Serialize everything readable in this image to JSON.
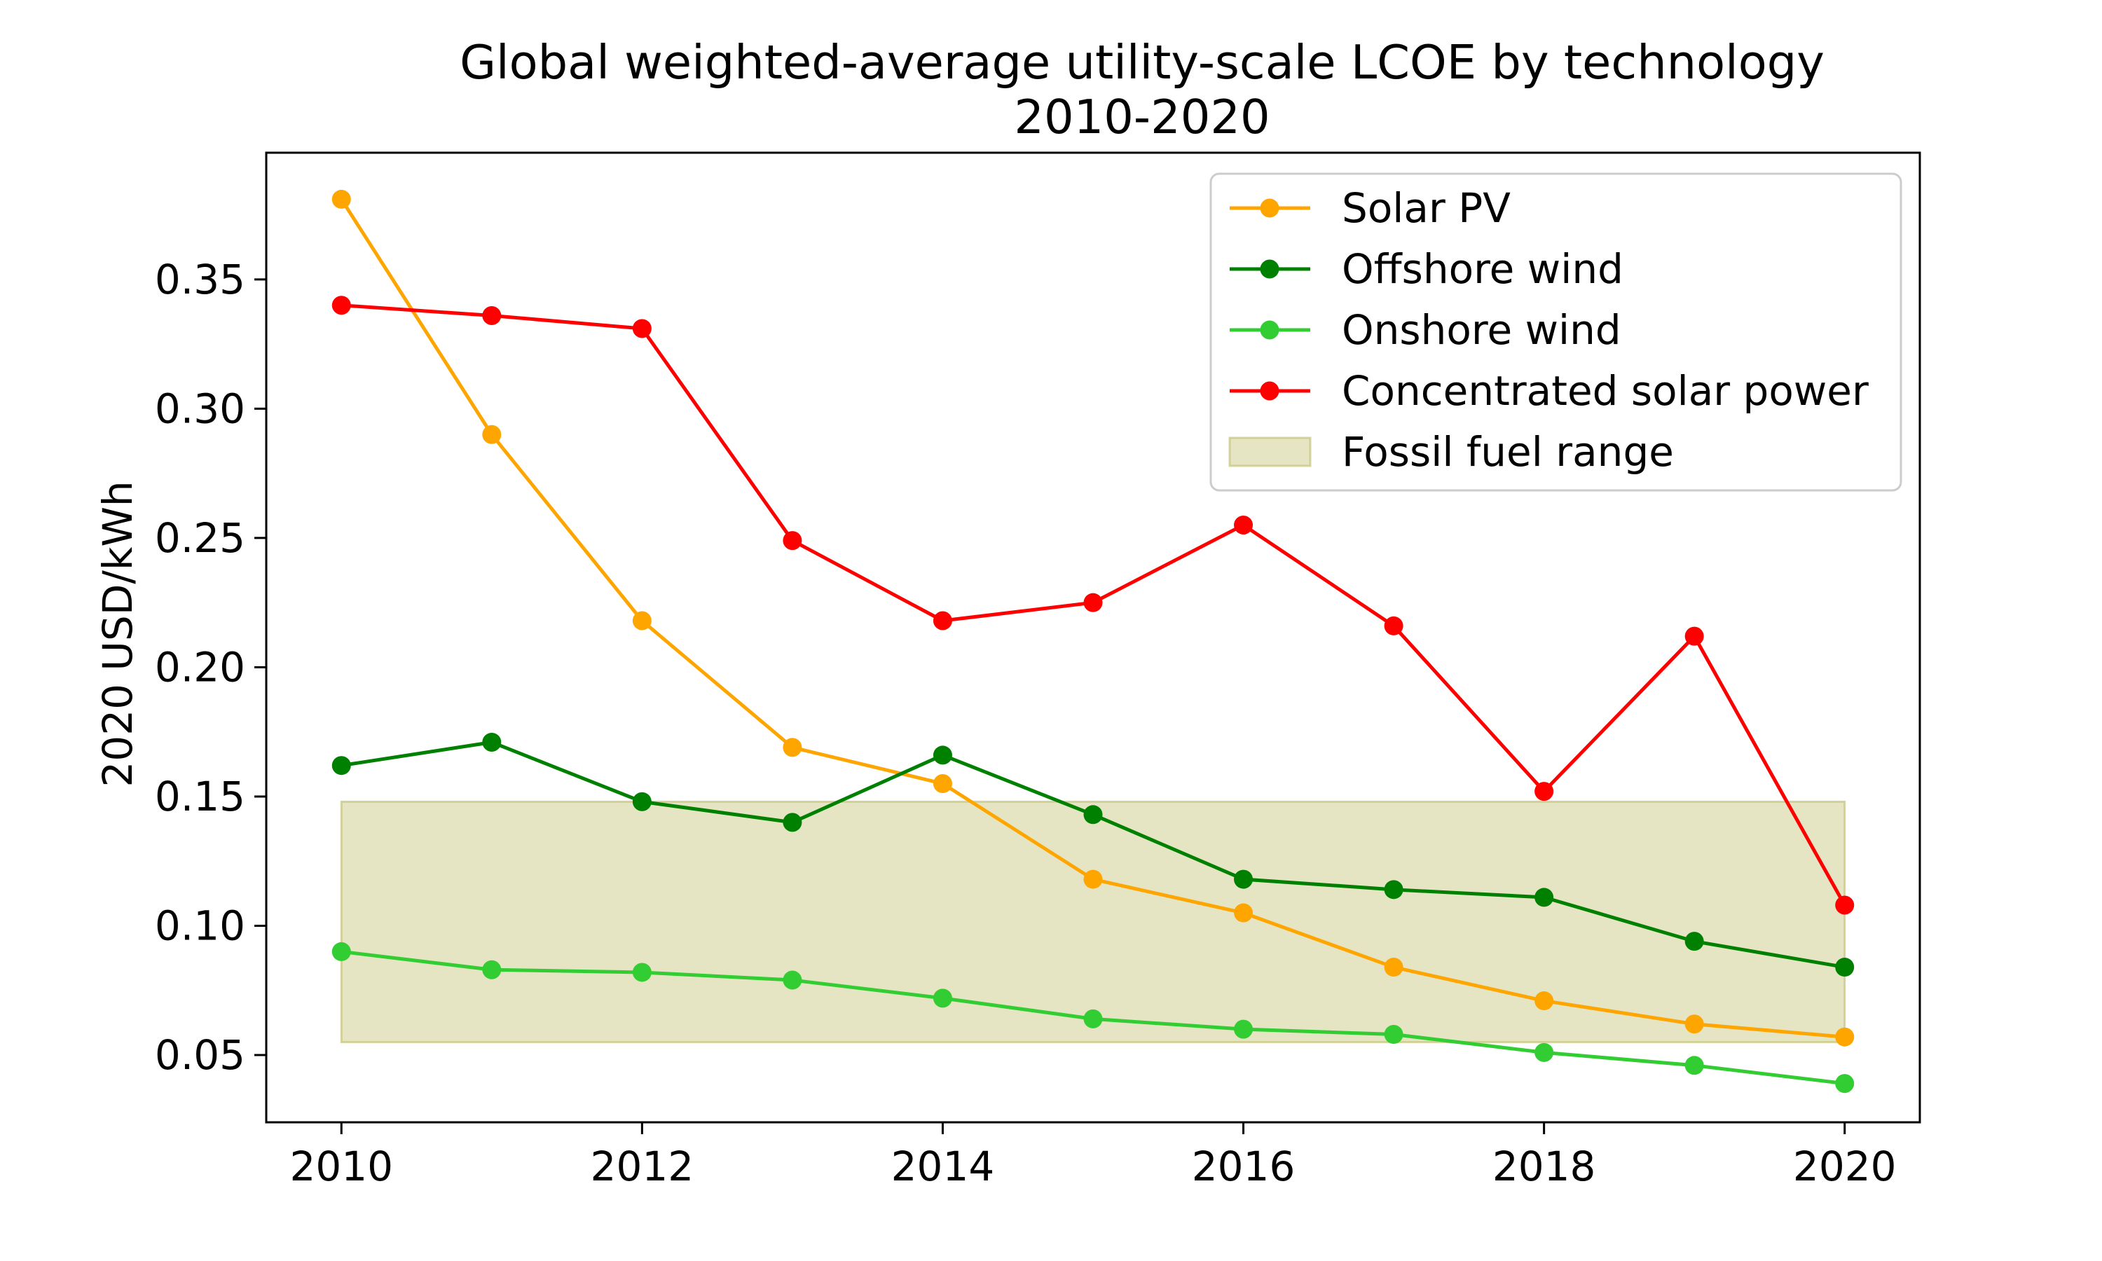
{
  "chart_data": {
    "type": "line",
    "title": "Global weighted-average utility-scale LCOE by technology",
    "subtitle": "2010-2020",
    "xlabel": "",
    "ylabel": "2020 USD/kWh",
    "x": [
      2010,
      2011,
      2012,
      2013,
      2014,
      2015,
      2016,
      2017,
      2018,
      2019,
      2020
    ],
    "xticks": [
      2010,
      2012,
      2014,
      2016,
      2018,
      2020
    ],
    "yticks": [
      0.05,
      0.1,
      0.15,
      0.2,
      0.25,
      0.3,
      0.35
    ],
    "xlim": [
      2009.5,
      2020.5
    ],
    "ylim": [
      0.024,
      0.399
    ],
    "grid": false,
    "legend_position": "top-right",
    "series": [
      {
        "name": "Solar PV",
        "color": "#FFA500",
        "values": [
          0.381,
          0.29,
          0.218,
          0.169,
          0.155,
          0.118,
          0.105,
          0.084,
          0.071,
          0.062,
          0.057
        ]
      },
      {
        "name": "Offshore wind",
        "color": "#008000",
        "values": [
          0.162,
          0.171,
          0.148,
          0.14,
          0.166,
          0.143,
          0.118,
          0.114,
          0.111,
          0.094,
          0.084
        ]
      },
      {
        "name": "Onshore wind",
        "color": "#32CD32",
        "values": [
          0.09,
          0.083,
          0.082,
          0.079,
          0.072,
          0.064,
          0.06,
          0.058,
          0.051,
          0.046,
          0.039
        ]
      },
      {
        "name": "Concentrated solar power",
        "color": "#FF0000",
        "values": [
          0.34,
          0.336,
          0.331,
          0.249,
          0.218,
          0.225,
          0.255,
          0.216,
          0.152,
          0.212,
          0.108
        ]
      }
    ],
    "bands": [
      {
        "name": "Fossil fuel range",
        "color": "#BDBD6B",
        "x_start": 2010,
        "x_end": 2020,
        "y_min": 0.055,
        "y_max": 0.148
      }
    ]
  }
}
